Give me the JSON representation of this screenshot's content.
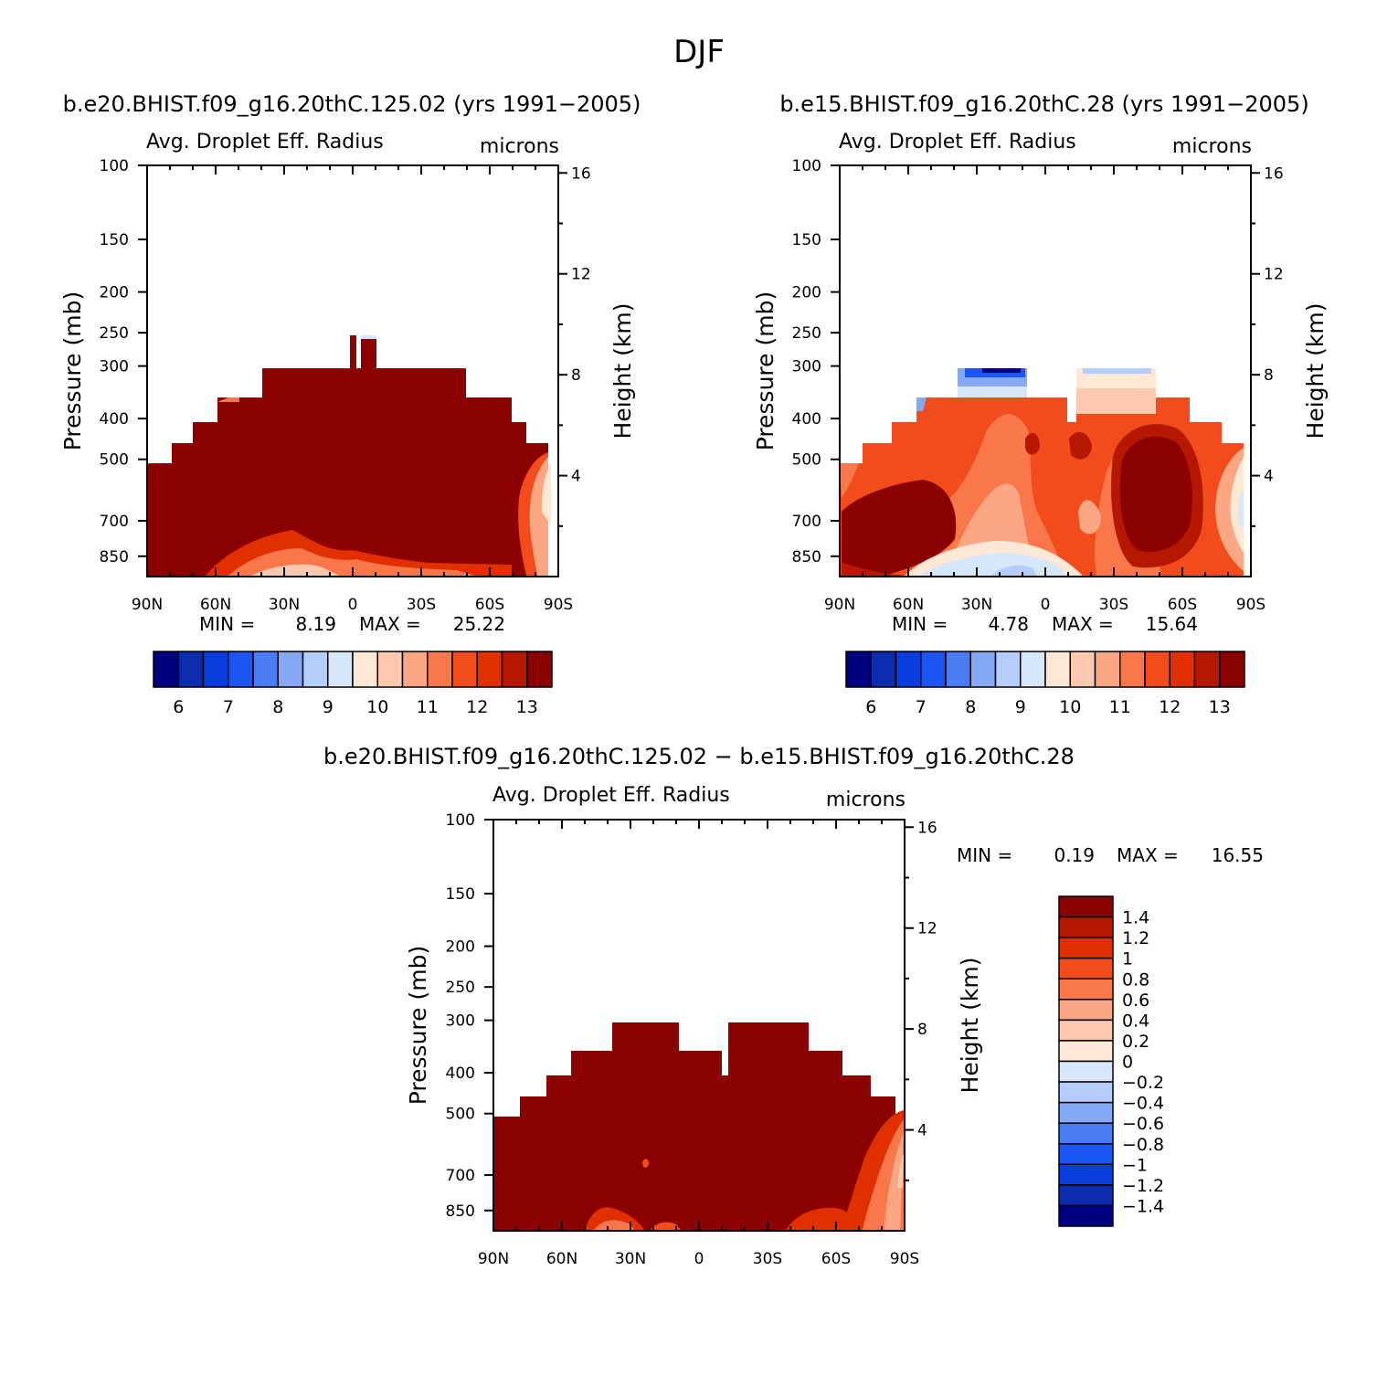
{
  "figure": {
    "title": "DJF"
  },
  "colors": {
    "abs_levels": [
      "#000080",
      "#0b2cad",
      "#0a3de0",
      "#1d55f5",
      "#4a7cf5",
      "#86a9f5",
      "#b5cdfa",
      "#d6e6fb",
      "#fde8d6",
      "#fcc9ae",
      "#fba783",
      "#f9774a",
      "#f24b1c",
      "#e22f00",
      "#b51700",
      "#8b0000"
    ],
    "diff_levels": [
      "#8b0000",
      "#b51700",
      "#e22f00",
      "#f24b1c",
      "#f9774a",
      "#fba783",
      "#fcc9ae",
      "#fde8d6",
      "#d6e6fb",
      "#b5cdfa",
      "#86a9f5",
      "#4a7cf5",
      "#1d55f5",
      "#0a3de0",
      "#0b2cad",
      "#000080"
    ],
    "dominant": "#8b0000"
  },
  "chart_data": [
    {
      "type": "heatmap",
      "title": "b.e20.BHIST.f09_g16.20thC.125.02 (yrs 1991−2005)",
      "variable": "Avg. Droplet Eff. Radius",
      "units": "microns",
      "ylabel": "Pressure (mb)",
      "ylabel_right": "Height (km)",
      "x_ticks": [
        "90N",
        "60N",
        "30N",
        "0",
        "30S",
        "60S",
        "90S"
      ],
      "y_ticks": [
        "100",
        "150",
        "200",
        "250",
        "300",
        "400",
        "500",
        "700",
        "850"
      ],
      "y_right_ticks": [
        "16",
        "12",
        "8",
        "4"
      ],
      "min_label": "MIN =",
      "min": "8.19",
      "max_label": "MAX =",
      "max": "25.22",
      "colorbar_labels": [
        "6",
        "7",
        "8",
        "9",
        "10",
        "11",
        "12",
        "13"
      ],
      "dominant_value": "> 13"
    },
    {
      "type": "heatmap",
      "title": "b.e15.BHIST.f09_g16.20thC.28 (yrs 1991−2005)",
      "variable": "Avg. Droplet Eff. Radius",
      "units": "microns",
      "ylabel": "Pressure (mb)",
      "ylabel_right": "Height (km)",
      "x_ticks": [
        "90N",
        "60N",
        "30N",
        "0",
        "30S",
        "60S",
        "90S"
      ],
      "y_ticks": [
        "100",
        "150",
        "200",
        "250",
        "300",
        "400",
        "500",
        "700",
        "850"
      ],
      "y_right_ticks": [
        "16",
        "12",
        "8",
        "4"
      ],
      "min_label": "MIN =",
      "min": "4.78",
      "max_label": "MAX =",
      "max": "15.64",
      "colorbar_labels": [
        "6",
        "7",
        "8",
        "9",
        "10",
        "11",
        "12",
        "13"
      ],
      "dominant_value": "11-13"
    },
    {
      "type": "heatmap",
      "title": "b.e20.BHIST.f09_g16.20thC.125.02 − b.e15.BHIST.f09_g16.20thC.28",
      "variable": "Avg. Droplet Eff. Radius",
      "units": "microns",
      "ylabel": "Pressure (mb)",
      "ylabel_right": "Height (km)",
      "x_ticks": [
        "90N",
        "60N",
        "30N",
        "0",
        "30S",
        "60S",
        "90S"
      ],
      "y_ticks": [
        "100",
        "150",
        "200",
        "250",
        "300",
        "400",
        "500",
        "700",
        "850"
      ],
      "y_right_ticks": [
        "16",
        "12",
        "8",
        "4"
      ],
      "min_label": "MIN =",
      "min": "0.19",
      "max_label": "MAX =",
      "max": "16.55",
      "colorbar_labels": [
        "1.4",
        "1.2",
        "1",
        "0.8",
        "0.6",
        "0.4",
        "0.2",
        "0",
        "−0.2",
        "−0.4",
        "−0.6",
        "−0.8",
        "−1",
        "−1.2",
        "−1.4"
      ],
      "dominant_value": "> 1.4"
    }
  ]
}
